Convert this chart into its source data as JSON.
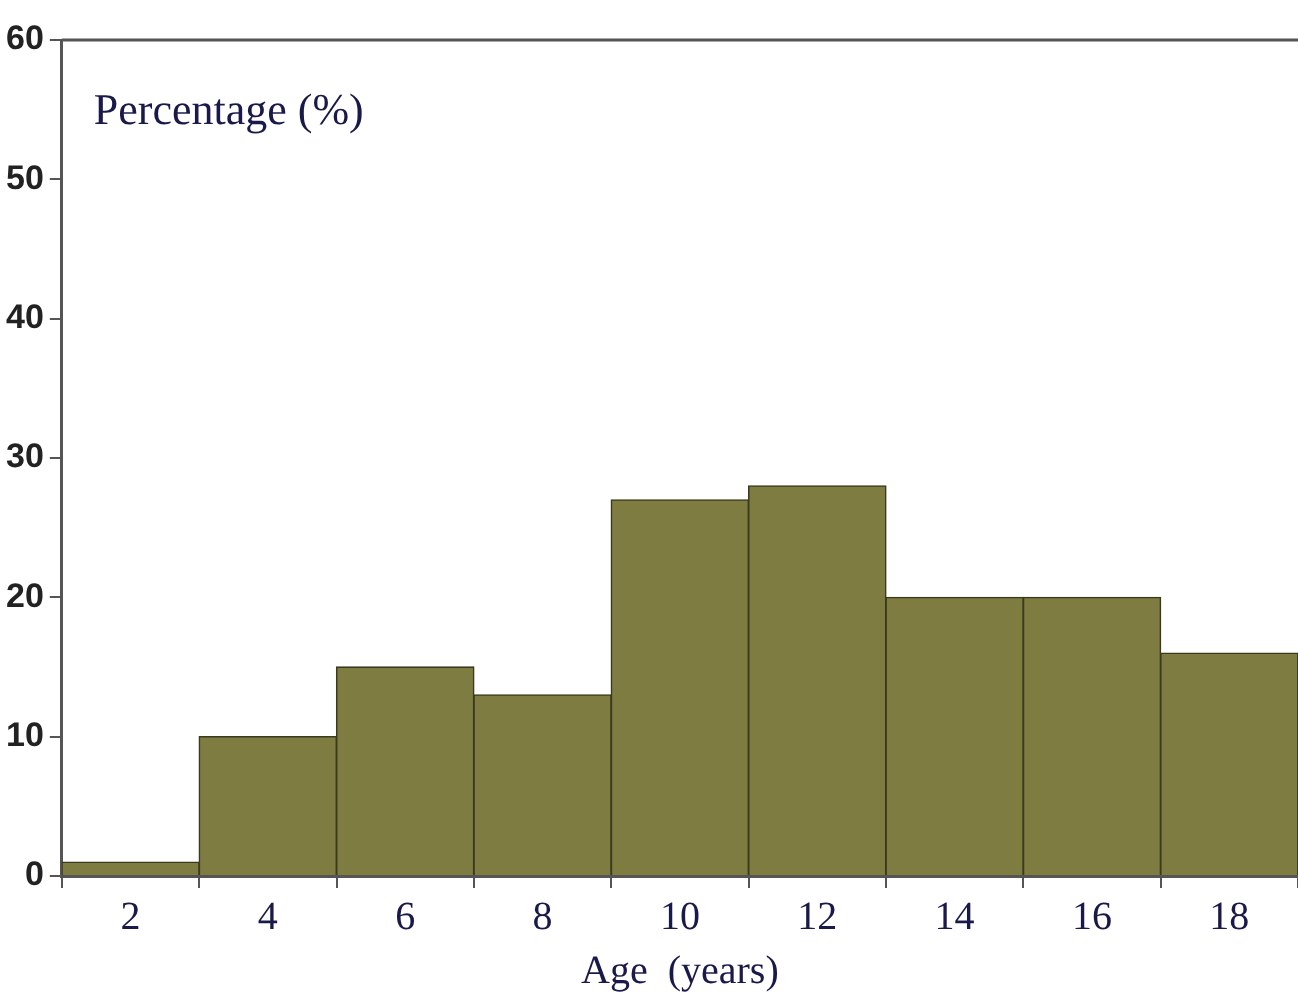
{
  "chart_data": {
    "type": "histogram",
    "xlabel": "Age  (years)",
    "ylabel": "Percentage (%)",
    "bins": [
      1,
      3,
      5,
      7,
      9,
      11,
      13,
      15,
      17,
      19
    ],
    "values": [
      1,
      10,
      15,
      13,
      27,
      28,
      20,
      20,
      16
    ],
    "color": "#7e7c40",
    "xlim": [
      1,
      19
    ],
    "xticks": [
      2,
      4,
      6,
      8,
      10,
      12,
      14,
      16,
      18
    ],
    "ylim": [
      0,
      60
    ],
    "yticks": [
      0,
      10,
      20,
      30,
      40,
      50,
      60
    ]
  }
}
